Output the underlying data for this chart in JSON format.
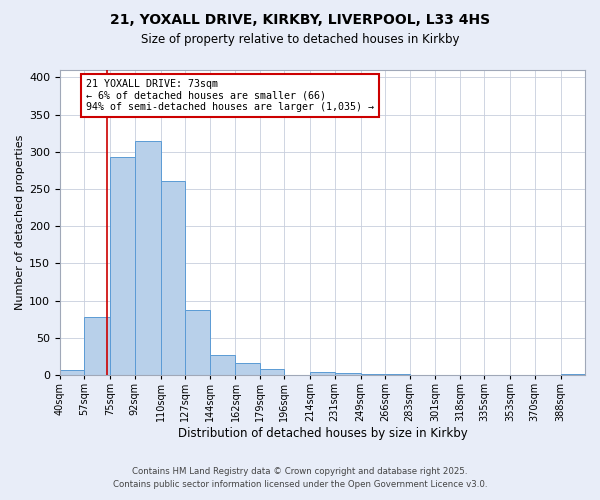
{
  "title1": "21, YOXALL DRIVE, KIRKBY, LIVERPOOL, L33 4HS",
  "title2": "Size of property relative to detached houses in Kirkby",
  "xlabel": "Distribution of detached houses by size in Kirkby",
  "ylabel": "Number of detached properties",
  "bin_labels": [
    "40sqm",
    "57sqm",
    "75sqm",
    "92sqm",
    "110sqm",
    "127sqm",
    "144sqm",
    "162sqm",
    "179sqm",
    "196sqm",
    "214sqm",
    "231sqm",
    "249sqm",
    "266sqm",
    "283sqm",
    "301sqm",
    "318sqm",
    "335sqm",
    "353sqm",
    "370sqm",
    "388sqm"
  ],
  "bar_values": [
    7,
    78,
    293,
    314,
    261,
    87,
    27,
    16,
    8,
    0,
    4,
    3,
    2,
    1,
    0,
    0,
    0,
    0,
    0,
    0,
    1
  ],
  "bin_edges": [
    40,
    57,
    75,
    92,
    110,
    127,
    144,
    162,
    179,
    196,
    214,
    231,
    249,
    266,
    283,
    301,
    318,
    335,
    353,
    370,
    388,
    405
  ],
  "ylim": [
    0,
    410
  ],
  "yticks": [
    0,
    50,
    100,
    150,
    200,
    250,
    300,
    350,
    400
  ],
  "bar_color": "#b8d0ea",
  "bar_edge_color": "#5b9bd5",
  "vline_x": 73,
  "vline_color": "#cc0000",
  "annotation_title": "21 YOXALL DRIVE: 73sqm",
  "annotation_line1": "← 6% of detached houses are smaller (66)",
  "annotation_line2": "94% of semi-detached houses are larger (1,035) →",
  "annotation_box_color": "#cc0000",
  "footnote1": "Contains HM Land Registry data © Crown copyright and database right 2025.",
  "footnote2": "Contains public sector information licensed under the Open Government Licence v3.0.",
  "bg_color": "#e8edf8",
  "plot_bg_color": "#ffffff",
  "grid_color": "#c8cedd"
}
